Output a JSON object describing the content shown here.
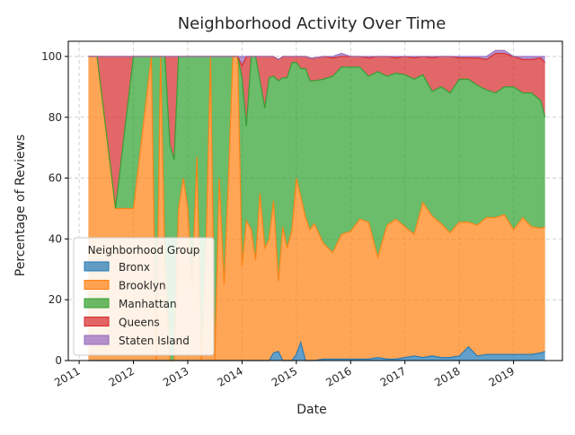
{
  "chart_data": {
    "type": "area",
    "stacked": true,
    "normalized_to": 100,
    "title": "Neighborhood Activity Over Time",
    "xlabel": "Date",
    "ylabel": "Percentage of Reviews",
    "xlim": [
      2010.8,
      2019.9
    ],
    "ylim": [
      0,
      105
    ],
    "xticks": [
      2011,
      2012,
      2013,
      2014,
      2015,
      2016,
      2017,
      2018,
      2019
    ],
    "xtick_labels": [
      "2011",
      "2012",
      "2013",
      "2014",
      "2015",
      "2016",
      "2017",
      "2018",
      "2019"
    ],
    "yticks": [
      0,
      20,
      40,
      60,
      80,
      100
    ],
    "ytick_labels": [
      "0",
      "20",
      "40",
      "60",
      "80",
      "100"
    ],
    "grid": true,
    "legend": {
      "title": "Neighborhood Group",
      "position": "lower-left"
    },
    "x": [
      2011.17,
      2011.33,
      2011.67,
      2012.0,
      2012.33,
      2012.42,
      2012.5,
      2012.58,
      2012.67,
      2012.75,
      2012.83,
      2012.92,
      2013.0,
      2013.08,
      2013.17,
      2013.25,
      2013.33,
      2013.42,
      2013.5,
      2013.58,
      2013.67,
      2013.75,
      2013.83,
      2013.92,
      2014.0,
      2014.08,
      2014.17,
      2014.25,
      2014.33,
      2014.42,
      2014.5,
      2014.58,
      2014.67,
      2014.75,
      2014.83,
      2014.92,
      2015.0,
      2015.08,
      2015.17,
      2015.25,
      2015.33,
      2015.5,
      2015.67,
      2015.83,
      2016.0,
      2016.17,
      2016.33,
      2016.5,
      2016.67,
      2016.83,
      2017.0,
      2017.17,
      2017.33,
      2017.5,
      2017.67,
      2017.83,
      2018.0,
      2018.17,
      2018.33,
      2018.5,
      2018.67,
      2018.83,
      2019.0,
      2019.17,
      2019.33,
      2019.5,
      2019.58
    ],
    "series": [
      {
        "name": "Bronx",
        "color": "#1f77b4",
        "values": [
          0,
          0,
          0,
          0,
          0,
          0,
          0,
          0,
          0,
          0,
          0,
          0,
          0,
          0,
          0,
          0,
          0,
          0,
          0,
          0,
          0,
          0,
          0,
          0,
          0,
          0,
          0,
          0,
          0,
          0,
          0,
          2.5,
          3,
          0,
          0,
          0,
          2,
          6,
          0,
          0,
          0,
          0.5,
          0.5,
          0.5,
          0.5,
          0.5,
          0.5,
          1,
          0.5,
          0.5,
          1,
          1.5,
          1,
          1.5,
          1,
          1,
          1.5,
          4.5,
          1.5,
          2,
          2,
          2,
          2,
          2,
          2,
          2.5,
          3
        ]
      },
      {
        "name": "Brooklyn",
        "color": "#ff7f0e",
        "values": [
          100,
          100,
          50,
          50,
          100,
          0,
          100,
          33,
          0,
          0,
          50,
          60,
          50,
          25,
          67,
          0,
          33,
          100,
          0,
          60,
          25,
          60,
          100,
          100,
          31,
          46,
          43,
          33,
          55,
          37,
          40,
          50,
          23,
          44,
          37,
          43,
          58,
          48,
          47,
          43,
          45,
          38,
          35,
          41,
          42,
          46,
          45,
          33,
          44,
          46,
          43,
          40,
          51,
          46,
          44,
          41,
          44,
          41,
          43,
          45,
          45,
          46,
          41,
          45,
          42,
          41,
          41
        ]
      },
      {
        "name": "Manhattan",
        "color": "#2ca02c",
        "values": [
          0,
          0,
          0,
          50,
          0,
          100,
          0,
          67,
          71,
          66,
          50,
          40,
          50,
          75,
          33,
          100,
          67,
          0,
          100,
          40,
          75,
          40,
          0,
          0,
          62,
          31,
          57,
          67,
          37,
          46,
          53,
          41,
          66,
          49,
          56,
          55,
          38,
          42,
          49,
          49,
          47,
          54,
          58,
          55,
          54,
          50,
          48,
          61,
          49,
          48,
          50,
          51,
          42,
          41,
          45,
          46,
          47,
          47,
          46,
          42,
          41,
          42,
          47,
          41,
          44,
          42,
          36
        ]
      },
      {
        "name": "Queens",
        "color": "#d62728",
        "values": [
          0,
          0,
          50,
          0,
          0,
          0,
          0,
          0,
          29,
          34,
          0,
          0,
          0,
          0,
          0,
          0,
          0,
          0,
          0,
          0,
          0,
          0,
          0,
          0,
          4,
          23,
          0,
          0,
          8,
          17,
          7,
          6.5,
          7,
          7,
          7,
          2,
          2,
          4,
          4,
          7.5,
          7.5,
          7.5,
          6,
          3.5,
          3.5,
          3.5,
          6,
          5,
          6.5,
          5,
          6,
          7,
          6,
          11,
          10,
          12,
          7,
          7,
          9,
          10,
          13,
          11,
          10,
          11,
          11,
          14,
          18
        ]
      },
      {
        "name": "Staten Island",
        "color": "#9467bd",
        "values": [
          0,
          0,
          0,
          0,
          0,
          0,
          0,
          0,
          0,
          0,
          0,
          0,
          0,
          0,
          0,
          0,
          0,
          0,
          0,
          0,
          0,
          0,
          0,
          0,
          3,
          0,
          0,
          0,
          0,
          0,
          0,
          0,
          0,
          0,
          0,
          0,
          0,
          0,
          0,
          0,
          0,
          0,
          0.5,
          1,
          0,
          0,
          0.5,
          0,
          0,
          0.5,
          0,
          0.5,
          0,
          0.5,
          0,
          0,
          0.5,
          0.5,
          0.5,
          1,
          1,
          1,
          0,
          1,
          1,
          0.5,
          2
        ]
      }
    ]
  }
}
